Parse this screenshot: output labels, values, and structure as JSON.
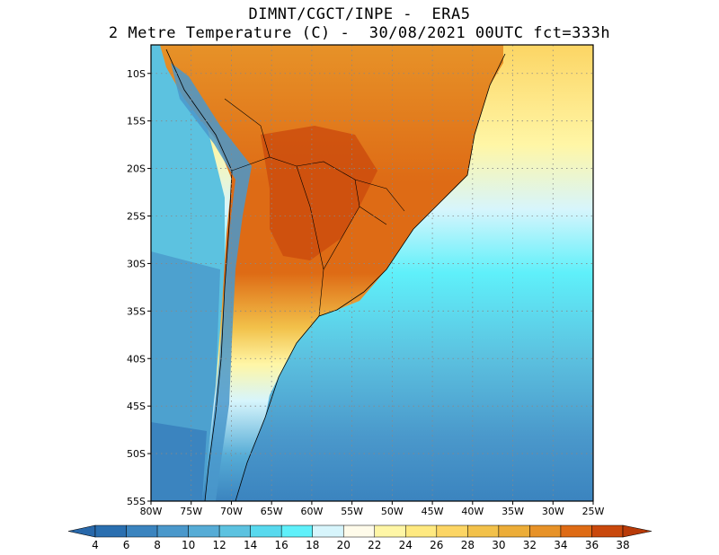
{
  "header": {
    "line1": "DIMNT/CGCT/INPE -  ERA5",
    "line2": "2 Metre Temperature (C) -  30/08/2021 00UTC fct=333h"
  },
  "map": {
    "lon_range": [
      -80,
      -25
    ],
    "lat_range": [
      -55,
      -7
    ],
    "x_ticks": [
      "80W",
      "75W",
      "70W",
      "65W",
      "60W",
      "55W",
      "50W",
      "45W",
      "40W",
      "35W",
      "30W",
      "25W"
    ],
    "y_ticks": [
      "10S",
      "15S",
      "20S",
      "25S",
      "30S",
      "35S",
      "40S",
      "45S",
      "50S",
      "55S"
    ]
  },
  "colorbar": {
    "labels": [
      "4",
      "6",
      "8",
      "10",
      "12",
      "14",
      "16",
      "18",
      "20",
      "22",
      "24",
      "26",
      "28",
      "30",
      "32",
      "34",
      "36",
      "38"
    ],
    "colors": [
      "#2a6fb0",
      "#3b84bf",
      "#4a98cb",
      "#56acd6",
      "#5cc2e0",
      "#58d9ee",
      "#5ff0fa",
      "#d7f5fc",
      "#fffbea",
      "#fff6a6",
      "#ffe980",
      "#fcd564",
      "#f2c14a",
      "#ecad38",
      "#e79228",
      "#de6b15",
      "#c9480c"
    ],
    "under_color": "#2868aa",
    "over_color": "#b83a08"
  }
}
